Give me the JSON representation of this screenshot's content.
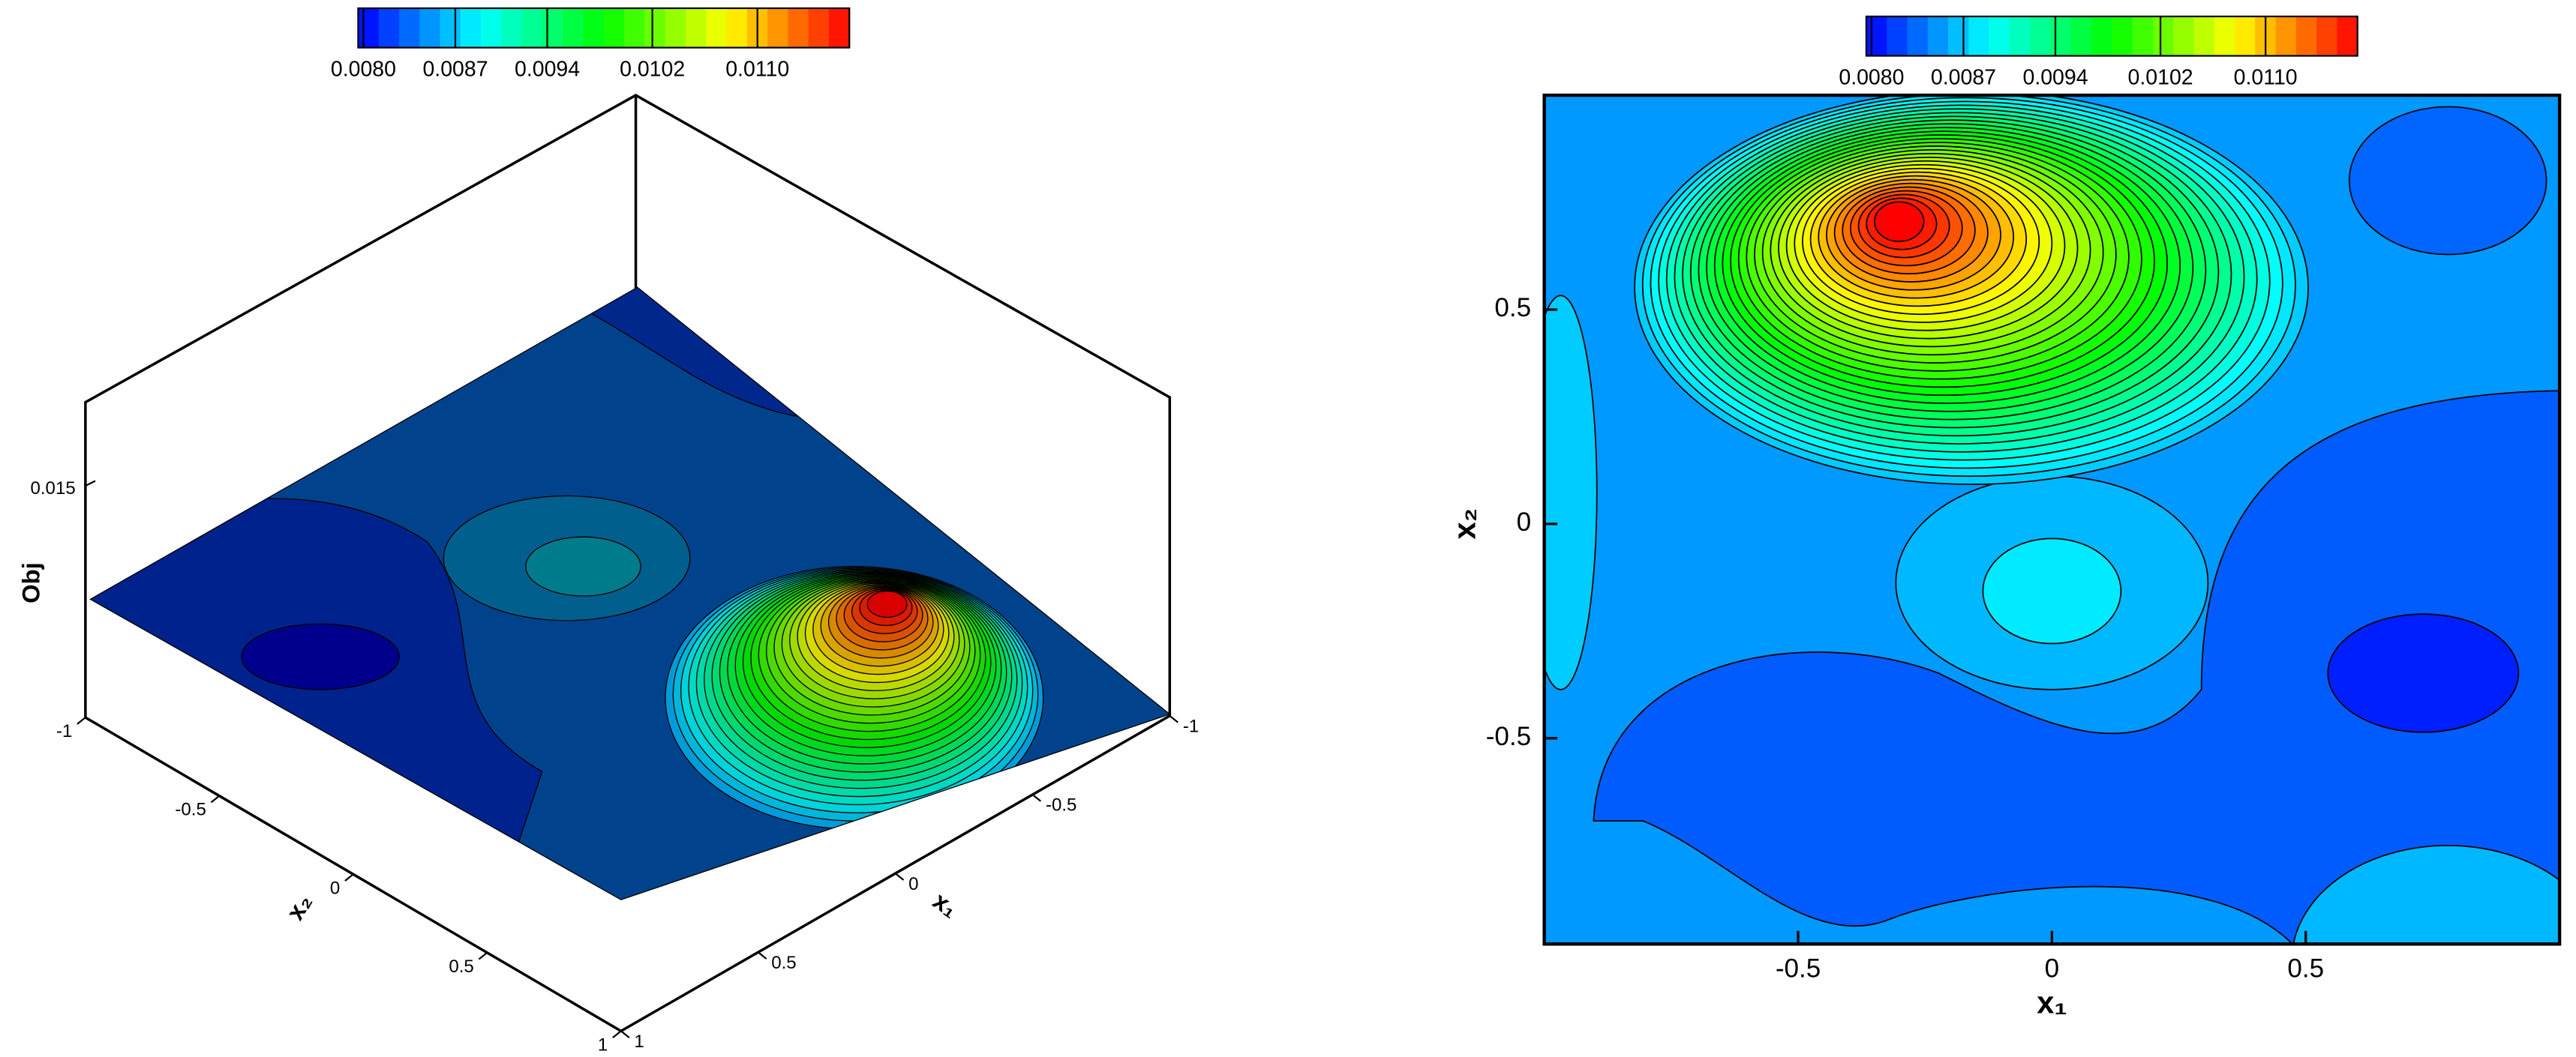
{
  "chart_data": [
    {
      "type": "surface3d",
      "x_label": "x₁",
      "y_label": "x₂",
      "z_label": "Obj",
      "xlim": [
        -1,
        1
      ],
      "xticks": [
        -1,
        -0.5,
        0,
        0.5,
        1
      ],
      "ylim": [
        -1,
        1
      ],
      "yticks": [
        -1,
        -0.5,
        0,
        0.5,
        1
      ],
      "zlim": [
        0.0017,
        0.0198
      ],
      "zticks": [
        0.015
      ],
      "colorbar": {
        "lim": [
          0.00796,
          0.0117
        ],
        "ticks": [
          {
            "value": 0.008,
            "label": "0.0080"
          },
          {
            "value": 0.0087,
            "label": "0.0087"
          },
          {
            "value": 0.0094,
            "label": "0.0094"
          },
          {
            "value": 0.0102,
            "label": "0.0102"
          },
          {
            "value": 0.011,
            "label": "0.0110"
          }
        ],
        "colors": [
          "#0000ff",
          "#00ffff",
          "#00ff00",
          "#ffff00",
          "#ff0000"
        ]
      }
    },
    {
      "type": "contour",
      "x_label": "x₁",
      "y_label": "x₂",
      "xlim": [
        -1,
        1
      ],
      "xticks": [
        -0.5,
        0,
        0.5
      ],
      "ylim": [
        -0.98,
        1
      ],
      "yticks": [
        -0.5,
        0,
        0.5
      ],
      "colorbar": {
        "lim": [
          0.00796,
          0.0117
        ],
        "ticks": [
          {
            "value": 0.008,
            "label": "0.0080"
          },
          {
            "value": 0.0087,
            "label": "0.0087"
          },
          {
            "value": 0.0094,
            "label": "0.0094"
          },
          {
            "value": 0.0102,
            "label": "0.0102"
          },
          {
            "value": 0.011,
            "label": "0.0110"
          }
        ],
        "colors": [
          "#0000ff",
          "#00ffff",
          "#00ff00",
          "#ffff00",
          "#ff0000"
        ]
      }
    }
  ]
}
